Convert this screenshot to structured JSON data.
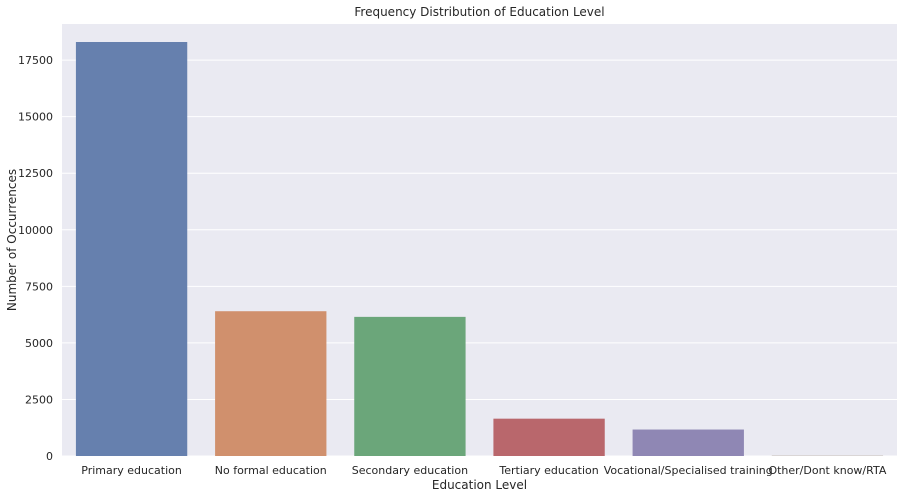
{
  "chart_data": {
    "type": "bar",
    "title": "Frequency Distribution of Education Level",
    "xlabel": "Education Level",
    "ylabel": "Number of Occurrences",
    "categories": [
      "Primary education",
      "No formal education",
      "Secondary education",
      "Tertiary education",
      "Vocational/Specialised training",
      "Other/Dont know/RTA"
    ],
    "values": [
      18300,
      6400,
      6150,
      1650,
      1170,
      10
    ],
    "colors": [
      "#6680ae",
      "#d0906d",
      "#6ba67a",
      "#b9676c",
      "#8f87b4",
      "#8d7967"
    ],
    "ylim": [
      0,
      18300
    ],
    "yticks": [
      0,
      2500,
      5000,
      7500,
      10000,
      12500,
      15000,
      17500
    ],
    "grid": true,
    "background": "#eaeaf2",
    "grid_color": "#ffffff"
  }
}
